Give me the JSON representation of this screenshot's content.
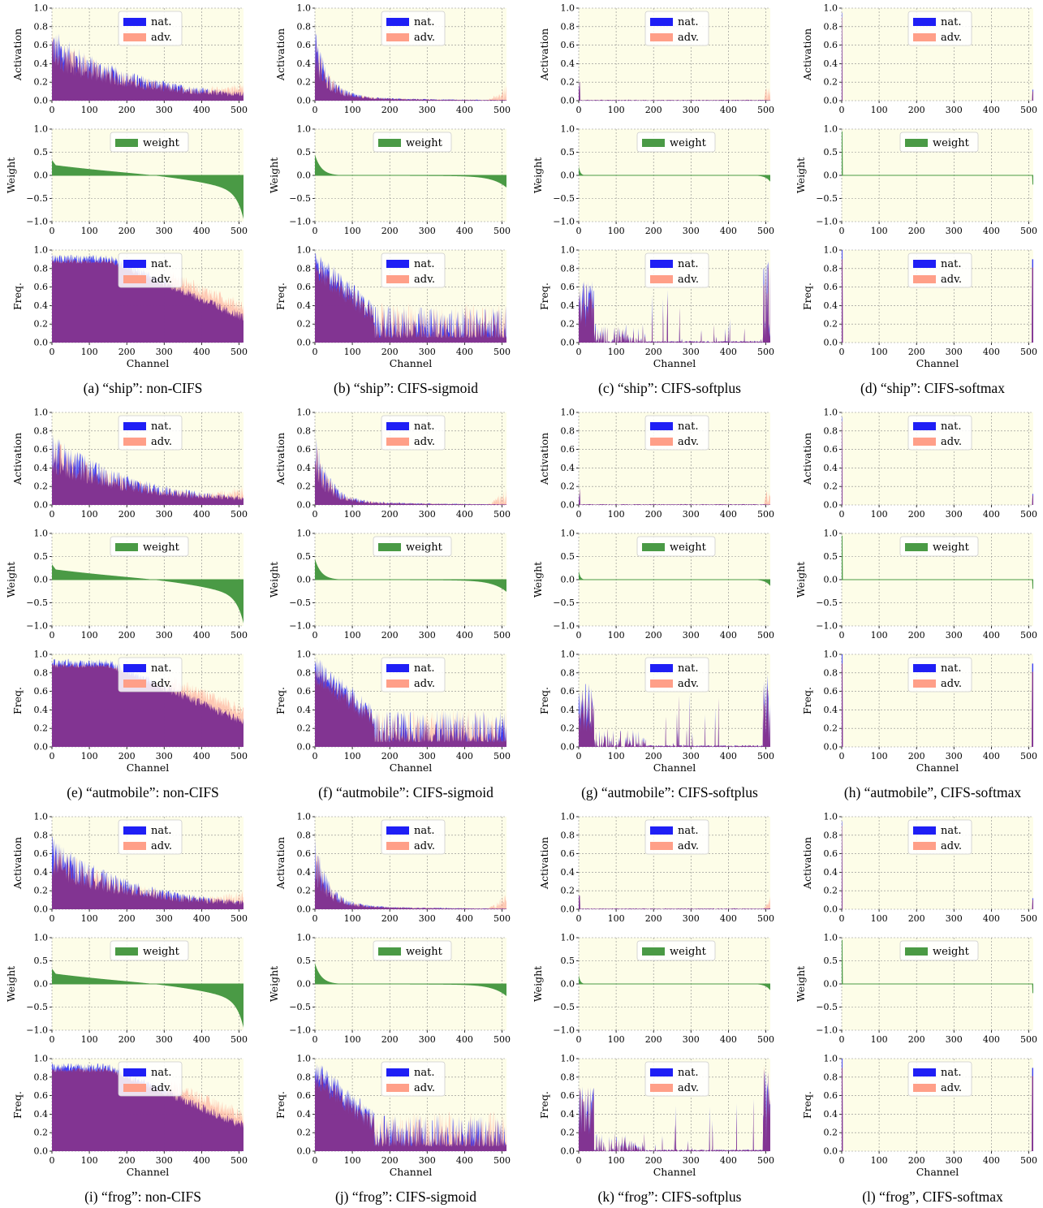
{
  "panels": [
    {
      "letter": "(a)",
      "caption": "(a) “ship”: non-CIFS",
      "variant": "non-CIFS"
    },
    {
      "letter": "(b)",
      "caption": "(b) “ship”: CIFS-sigmoid",
      "variant": "sigmoid"
    },
    {
      "letter": "(c)",
      "caption": "(c) “ship”: CIFS-softplus",
      "variant": "softplus"
    },
    {
      "letter": "(d)",
      "caption": "(d) “ship”: CIFS-softmax",
      "variant": "softmax"
    },
    {
      "letter": "(e)",
      "caption": "(e) “autmobile”: non-CIFS",
      "variant": "non-CIFS"
    },
    {
      "letter": "(f)",
      "caption": "(f) “autmobile”: CIFS-sigmoid",
      "variant": "sigmoid"
    },
    {
      "letter": "(g)",
      "caption": "(g) “autmobile”: CIFS-softplus",
      "variant": "softplus"
    },
    {
      "letter": "(h)",
      "caption": "(h) “autmobile”, CIFS-softmax",
      "variant": "softmax"
    },
    {
      "letter": "(i)",
      "caption": "(i) “frog”: non-CIFS",
      "variant": "non-CIFS"
    },
    {
      "letter": "(j)",
      "caption": "(j) “frog”: CIFS-sigmoid",
      "variant": "sigmoid"
    },
    {
      "letter": "(k)",
      "caption": "(k) “frog”: CIFS-softplus",
      "variant": "softplus"
    },
    {
      "letter": "(l)",
      "caption": "(l) “frog”, CIFS-softmax",
      "variant": "softmax"
    }
  ],
  "labels": {
    "activation_ylabel": "Activation",
    "weight_ylabel": "Weight",
    "freq_ylabel": "Freq.",
    "xlabel": "Channel",
    "legend_nat": "nat.",
    "legend_adv": "adv.",
    "legend_weight": "weight"
  },
  "colors": {
    "background": "#fdfde8",
    "nat": "#1f1ff5",
    "adv": "#ff9f88",
    "overlap": "#7d2e8e",
    "weight": "#4a9a45",
    "grid": "#8a8a8a"
  },
  "chart_data": {
    "type": "area",
    "x_range": [
      0,
      512
    ],
    "x_ticks": [
      0,
      100,
      200,
      300,
      400,
      500
    ],
    "activation": {
      "ylim": [
        0,
        1.0
      ],
      "yticks": [
        "0.0",
        "0.2",
        "0.4",
        "0.6",
        "0.8",
        "1.0"
      ],
      "series": [
        "nat.",
        "adv."
      ]
    },
    "weight": {
      "ylim": [
        -1.0,
        1.0
      ],
      "yticks": [
        "−1.0",
        "−0.5",
        "0.0",
        "0.5",
        "1.0"
      ],
      "series": [
        "weight"
      ]
    },
    "freq": {
      "ylim": [
        0,
        1.0
      ],
      "yticks": [
        "0.0",
        "0.2",
        "0.4",
        "0.6",
        "0.8",
        "1.0"
      ],
      "series": [
        "nat.",
        "adv."
      ]
    },
    "grid": true,
    "legend_placement": "upper center"
  }
}
